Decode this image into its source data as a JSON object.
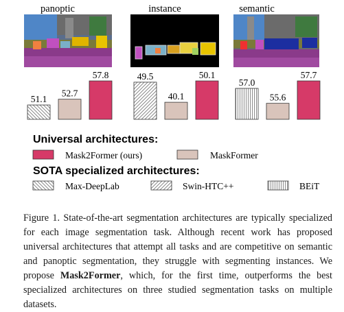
{
  "colors": {
    "mask2former": "#d63a68",
    "maskformer": "#d9c4bb",
    "hatch": "#8a8a8a",
    "bar_stroke": "#333333"
  },
  "chart_data": {
    "type": "bar",
    "panels": [
      {
        "title": "panoptic",
        "image_icon": "panoptic-segmentation-image",
        "bars": [
          {
            "method": "Max-DeepLab",
            "value": 51.1,
            "label": "51.1"
          },
          {
            "method": "MaskFormer",
            "value": 52.7,
            "label": "52.7"
          },
          {
            "method": "Mask2Former (ours)",
            "value": 57.8,
            "label": "57.8"
          }
        ]
      },
      {
        "title": "instance",
        "image_icon": "instance-segmentation-image",
        "bars": [
          {
            "method": "Swin-HTC++",
            "value": 49.5,
            "label": "49.5"
          },
          {
            "method": "MaskFormer",
            "value": 40.1,
            "label": "40.1"
          },
          {
            "method": "Mask2Former (ours)",
            "value": 50.1,
            "label": "50.1"
          }
        ]
      },
      {
        "title": "semantic",
        "image_icon": "semantic-segmentation-image",
        "bars": [
          {
            "method": "BEiT",
            "value": 57.0,
            "label": "57.0"
          },
          {
            "method": "MaskFormer",
            "value": 55.6,
            "label": "55.6"
          },
          {
            "method": "Mask2Former (ours)",
            "value": 57.7,
            "label": "57.7"
          }
        ]
      }
    ]
  },
  "legend": {
    "universal_heading": "Universal architectures:",
    "universal": [
      {
        "label": "Mask2Former (ours)",
        "style": "mask2former"
      },
      {
        "label": "MaskFormer",
        "style": "maskformer"
      }
    ],
    "sota_heading": "SOTA specialized architectures:",
    "sota": [
      {
        "label": "Max-DeepLab",
        "style": "hatch-back"
      },
      {
        "label": "Swin-HTC++",
        "style": "hatch-fwd"
      },
      {
        "label": "BEiT",
        "style": "hatch-vert"
      }
    ]
  },
  "caption": {
    "part1": "Figure 1. State-of-the-art segmentation architectures are typically specialized for each image segmentation task. Although recent work has proposed universal architectures that attempt all tasks and are competitive on semantic and panoptic segmentation, they struggle with segmenting instances. We propose ",
    "emph": "Mask2Former",
    "part2": ", which, for the first time, outperforms the best specialized architectures on three studied segmentation tasks on multiple datasets."
  }
}
